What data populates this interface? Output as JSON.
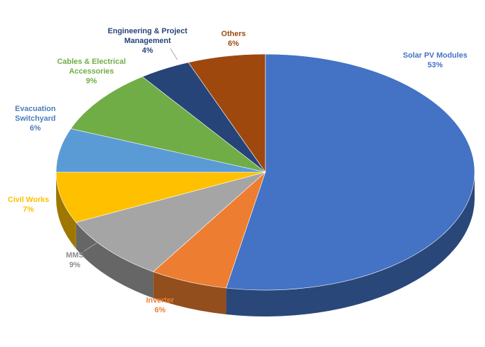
{
  "chart_data": {
    "type": "pie",
    "title": "",
    "slices": [
      {
        "name": "Solar PV Modules",
        "lines": [
          "Solar PV Modules"
        ],
        "value": 53,
        "value_label": "53%",
        "color": "#4472C4",
        "label_color": "#4472C4"
      },
      {
        "name": "Inverter",
        "lines": [
          "Inverter"
        ],
        "value": 6,
        "value_label": "6%",
        "color": "#ED7D31",
        "label_color": "#ED7D31"
      },
      {
        "name": "MMS",
        "lines": [
          "MMS"
        ],
        "value": 9,
        "value_label": "9%",
        "color": "#A5A5A5",
        "label_color": "#8C8C8C"
      },
      {
        "name": "Civil Works",
        "lines": [
          "Civil Works"
        ],
        "value": 7,
        "value_label": "7%",
        "color": "#FFC000",
        "label_color": "#FFC000"
      },
      {
        "name": "Evacuation Switchyard",
        "lines": [
          "Evacuation",
          "Switchyard"
        ],
        "value": 6,
        "value_label": "6%",
        "color": "#5B9BD5",
        "label_color": "#4A7EBB"
      },
      {
        "name": "Cables & Electrical Accessories",
        "lines": [
          "Cables & Electrical",
          "Accessories"
        ],
        "value": 9,
        "value_label": "9%",
        "color": "#70AD47",
        "label_color": "#70AD47"
      },
      {
        "name": "Engineering & Project Management",
        "lines": [
          "Engineering & Project",
          "Management"
        ],
        "value": 4,
        "value_label": "4%",
        "color": "#264478",
        "label_color": "#264478"
      },
      {
        "name": "Others",
        "lines": [
          "Others"
        ],
        "value": 6,
        "value_label": "6%",
        "color": "#9E480E",
        "label_color": "#9E480E"
      }
    ],
    "style": "3d",
    "legend": "none",
    "data_labels": "outside"
  }
}
